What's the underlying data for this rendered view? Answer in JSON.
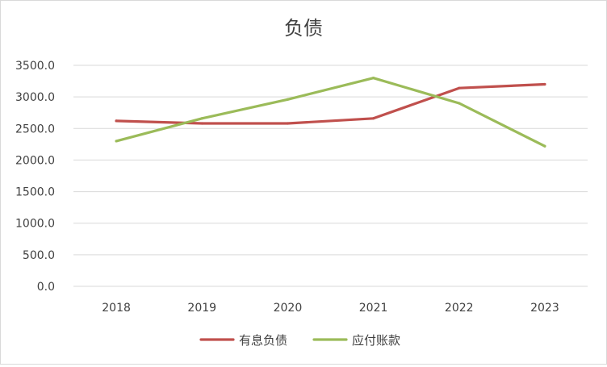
{
  "chart_data": {
    "type": "line",
    "title": "负债",
    "xlabel": "",
    "ylabel": "",
    "categories": [
      "2018",
      "2019",
      "2020",
      "2021",
      "2022",
      "2023"
    ],
    "ylim": [
      0,
      3500
    ],
    "y_ticks": [
      "0.0",
      "500.0",
      "1000.0",
      "1500.0",
      "2000.0",
      "2500.0",
      "3000.0",
      "3500.0"
    ],
    "grid": true,
    "legend_position": "bottom",
    "series": [
      {
        "name": "有息负债",
        "color": "#c0504d",
        "values": [
          2620,
          2580,
          2580,
          2660,
          3140,
          3200
        ]
      },
      {
        "name": "应付账款",
        "color": "#9bbb59",
        "values": [
          2300,
          2660,
          2960,
          3300,
          2900,
          2220
        ]
      }
    ]
  }
}
